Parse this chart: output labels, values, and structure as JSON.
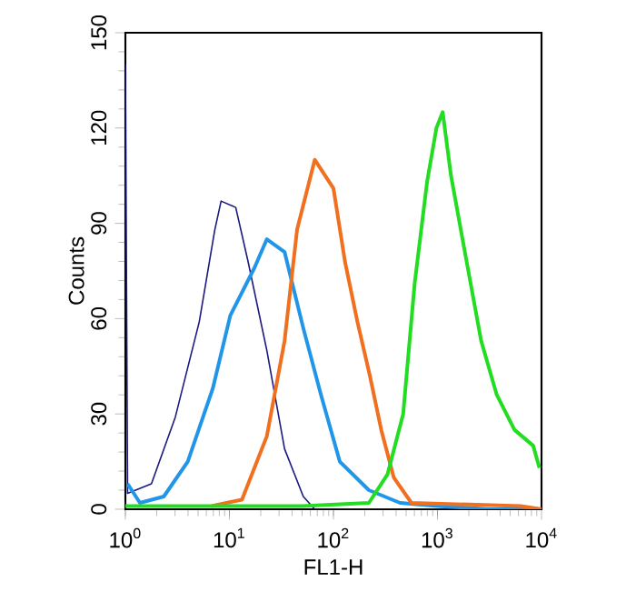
{
  "chart_data": {
    "type": "line",
    "xlabel": "FL1-H",
    "ylabel": "Counts",
    "log": "x",
    "xlim": [
      1,
      10000
    ],
    "ylim": [
      0,
      150
    ],
    "xticks": [
      {
        "value": 1,
        "label": "10$^{0}$"
      },
      {
        "value": 10,
        "label": "10$^{1}$"
      },
      {
        "value": 100,
        "label": "10$^{2}$"
      },
      {
        "value": 1000,
        "label": "10$^{3}$"
      },
      {
        "value": 10000,
        "label": "10$^{4}$"
      }
    ],
    "yticks": [
      0,
      30,
      60,
      90,
      120,
      150
    ],
    "series": [
      {
        "color": "#1a1a80",
        "x": [
          1,
          1.05,
          1.78,
          3.02,
          5.13,
          7.24,
          8.32,
          11.5,
          15.1,
          22.9,
          33.9,
          51.3,
          66.1,
          10000
        ],
        "values": [
          140,
          5,
          8,
          29,
          59,
          88,
          97,
          95,
          78,
          50,
          19,
          4,
          0,
          0
        ]
      },
      {
        "color": "#2196e8",
        "x": [
          1.05,
          1.38,
          2.34,
          3.98,
          6.92,
          10.2,
          17.4,
          22.9,
          33.9,
          38.9,
          51.3,
          75.9,
          115,
          219,
          437,
          1000,
          3160,
          10000
        ],
        "values": [
          8,
          2,
          4,
          15,
          38,
          61,
          76,
          85,
          81,
          73,
          57,
          36,
          15,
          6,
          2,
          1,
          0,
          0
        ]
      },
      {
        "color": "#f07020",
        "x": [
          6.76,
          13.2,
          22.9,
          33.9,
          44.7,
          66.1,
          100,
          129,
          170,
          224,
          288,
          380,
          562,
          6310,
          10000
        ],
        "values": [
          1,
          3,
          23,
          53,
          88,
          110,
          101,
          78,
          59,
          42,
          25,
          10,
          2,
          1,
          0
        ]
      },
      {
        "color": "#22dd22",
        "x": [
          1,
          50.1,
          219,
          331,
          468,
          603,
          794,
          977,
          1122,
          1349,
          1905,
          2630,
          3715,
          5495,
          8318,
          9550
        ],
        "values": [
          1,
          1,
          2,
          11,
          30,
          71,
          103,
          120,
          125,
          105,
          78,
          53,
          36,
          25,
          20,
          13
        ]
      }
    ]
  }
}
